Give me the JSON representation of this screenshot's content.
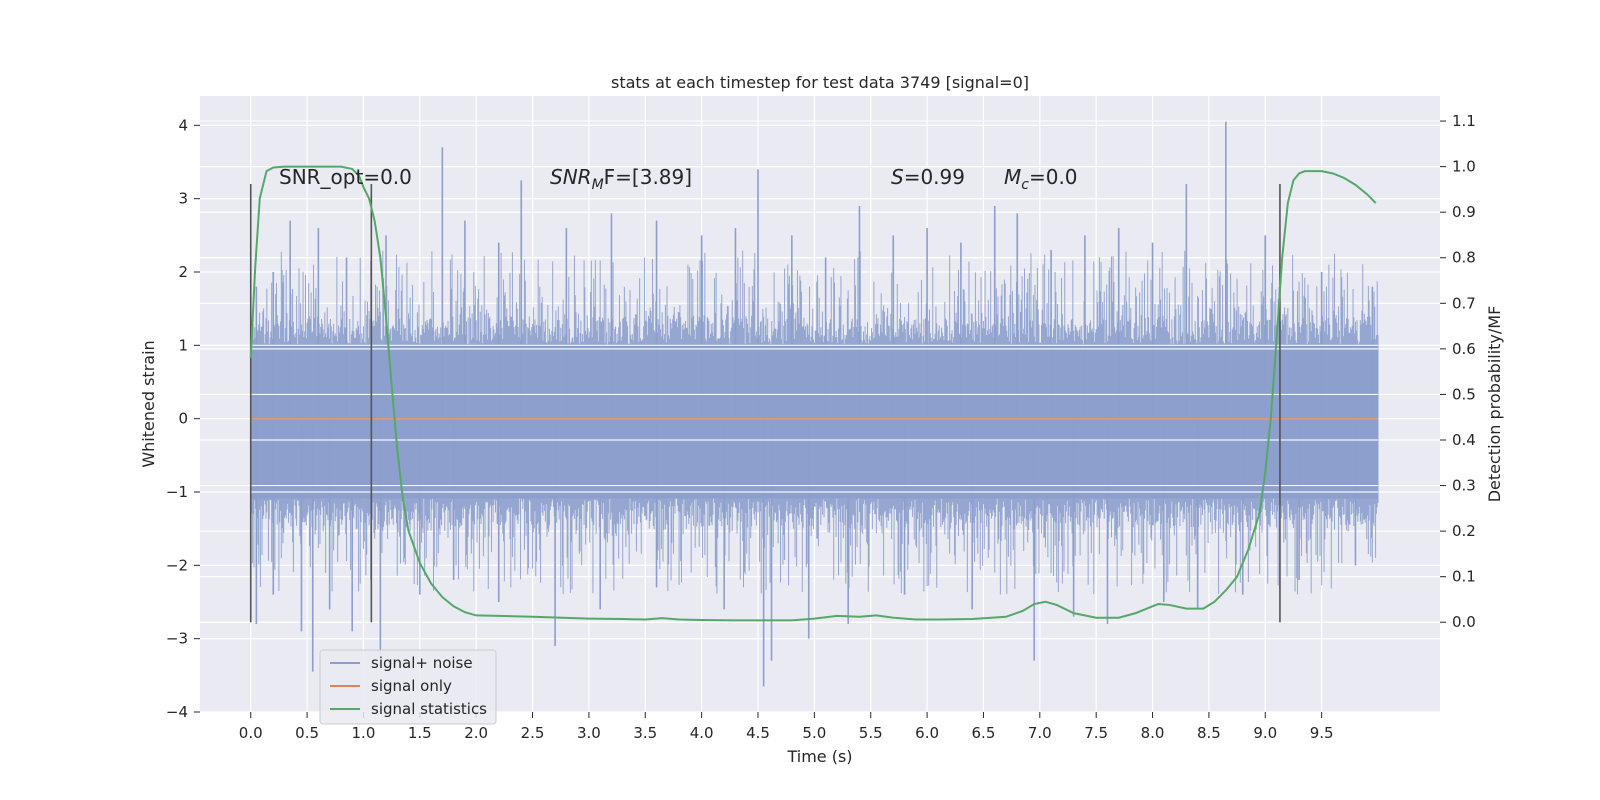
{
  "chart_data": {
    "type": "line",
    "title": "stats at each timestep for test data 3749 [signal=0]",
    "xlabel": "Time (s)",
    "ylabel_left": "Whitened strain",
    "ylabel_right": "Detection probability/MF",
    "xlim": [
      -0.45,
      10.55
    ],
    "ylim_left": [
      -4.0,
      4.4
    ],
    "ylim_right": [
      -0.197,
      1.155
    ],
    "x_ticks": [
      0.0,
      0.5,
      1.0,
      1.5,
      2.0,
      2.5,
      3.0,
      3.5,
      4.0,
      4.5,
      5.0,
      5.5,
      6.0,
      6.5,
      7.0,
      7.5,
      8.0,
      8.5,
      9.0,
      9.5
    ],
    "x_tick_labels": [
      "0.0",
      "0.5",
      "1.0",
      "1.5",
      "2.0",
      "2.5",
      "3.0",
      "3.5",
      "4.0",
      "4.5",
      "5.0",
      "5.5",
      "6.0",
      "6.5",
      "7.0",
      "7.5",
      "8.0",
      "8.5",
      "9.0",
      "9.5"
    ],
    "y_left_ticks": [
      -4,
      -3,
      -2,
      -1,
      0,
      1,
      2,
      3,
      4
    ],
    "y_left_tick_labels": [
      "−4",
      "−3",
      "−2",
      "−1",
      "0",
      "1",
      "2",
      "3",
      "4"
    ],
    "y_right_ticks": [
      0.0,
      0.1,
      0.2,
      0.3,
      0.4,
      0.5,
      0.6,
      0.7,
      0.8,
      0.9,
      1.0,
      1.1
    ],
    "y_right_tick_labels": [
      "0.0",
      "0.1",
      "0.2",
      "0.3",
      "0.4",
      "0.5",
      "0.6",
      "0.7",
      "0.8",
      "0.9",
      "1.0",
      "1.1"
    ],
    "grid": true,
    "legend_position": "lower-left",
    "annotations": {
      "snr_opt": "SNR_opt=0.0",
      "snr_mf_main": "SNR",
      "snr_mf_sub": "M",
      "snr_mf_rest": "F=[3.89]",
      "s_main": "S",
      "s_rest": "=0.99",
      "mc_main": "M",
      "mc_sub": "c",
      "mc_rest": "=0.0"
    },
    "window_markers_x": [
      0.0,
      1.07,
      9.13
    ],
    "window_marker_range_right": [
      0.0,
      1.0
    ],
    "series": [
      {
        "name": "signal+ noise",
        "color": "#8c9fcc",
        "axis": "left",
        "x_range": [
          0.0,
          10.0
        ],
        "envelope": {
          "core_upper": 1.35,
          "core_lower": -1.45,
          "peak_values_upper": [
            1.8,
            2.0,
            2.7,
            2.6,
            2.2,
            2.5,
            3.7,
            2.7,
            2.4,
            3.25,
            2.6,
            2.8,
            2.7,
            2.5,
            2.6,
            3.4,
            2.5,
            2.2,
            2.9,
            2.5,
            2.6,
            2.4,
            2.9,
            2.8,
            2.3,
            2.5,
            2.6,
            2.4,
            3.2,
            4.05,
            2.5,
            2.0,
            1.8
          ],
          "peak_x_upper": [
            0.05,
            0.2,
            0.35,
            0.6,
            0.85,
            1.2,
            1.7,
            1.9,
            2.2,
            2.4,
            2.8,
            3.2,
            3.6,
            4.0,
            4.3,
            4.5,
            4.8,
            5.1,
            5.4,
            5.7,
            6.0,
            6.3,
            6.6,
            6.8,
            7.1,
            7.4,
            7.7,
            8.0,
            8.3,
            8.65,
            9.0,
            9.5,
            9.95
          ],
          "peak_values_lower": [
            -2.8,
            -2.4,
            -2.9,
            -3.45,
            -2.6,
            -2.9,
            -3.2,
            -2.4,
            -2.2,
            -2.5,
            -3.1,
            -2.6,
            -2.3,
            -2.6,
            -3.65,
            -3.3,
            -3.0,
            -2.8,
            -2.4,
            -2.6,
            -3.3,
            -2.7,
            -2.8,
            -2.5,
            -2.6,
            -2.4,
            -2.2,
            -2.0
          ],
          "peak_x_lower": [
            0.05,
            0.2,
            0.45,
            0.55,
            0.7,
            0.9,
            1.15,
            1.5,
            1.8,
            2.2,
            2.7,
            3.1,
            3.6,
            4.2,
            4.55,
            4.62,
            4.95,
            5.3,
            5.8,
            6.4,
            6.95,
            7.3,
            7.6,
            8.1,
            8.4,
            8.8,
            9.3,
            9.8
          ]
        }
      },
      {
        "name": "signal only",
        "color": "#dd8452",
        "axis": "left",
        "x": [
          0.0,
          10.0
        ],
        "y": [
          0.0,
          0.0
        ]
      },
      {
        "name": "signal statistics",
        "color": "#55a868",
        "axis": "right",
        "x": [
          0.0,
          0.04,
          0.08,
          0.14,
          0.2,
          0.3,
          0.4,
          0.5,
          0.6,
          0.7,
          0.8,
          0.9,
          0.96,
          1.0,
          1.05,
          1.1,
          1.15,
          1.2,
          1.25,
          1.3,
          1.35,
          1.4,
          1.5,
          1.6,
          1.7,
          1.8,
          1.9,
          2.0,
          2.2,
          2.5,
          3.0,
          3.3,
          3.5,
          3.65,
          3.8,
          4.0,
          4.3,
          4.6,
          4.8,
          5.0,
          5.2,
          5.4,
          5.55,
          5.7,
          5.9,
          6.1,
          6.4,
          6.7,
          6.85,
          6.95,
          7.05,
          7.15,
          7.3,
          7.5,
          7.7,
          7.85,
          7.95,
          8.05,
          8.15,
          8.3,
          8.45,
          8.55,
          8.65,
          8.75,
          8.85,
          8.95,
          9.0,
          9.05,
          9.1,
          9.15,
          9.2,
          9.25,
          9.3,
          9.35,
          9.4,
          9.5,
          9.6,
          9.7,
          9.8,
          9.9,
          9.98
        ],
        "y": [
          0.58,
          0.78,
          0.93,
          0.99,
          0.998,
          1.0,
          1.0,
          1.0,
          1.0,
          1.0,
          1.0,
          0.995,
          0.98,
          0.955,
          0.93,
          0.88,
          0.8,
          0.67,
          0.52,
          0.38,
          0.27,
          0.2,
          0.13,
          0.085,
          0.055,
          0.035,
          0.022,
          0.015,
          0.014,
          0.012,
          0.008,
          0.007,
          0.006,
          0.009,
          0.006,
          0.005,
          0.004,
          0.004,
          0.004,
          0.008,
          0.014,
          0.012,
          0.015,
          0.01,
          0.006,
          0.006,
          0.007,
          0.012,
          0.025,
          0.04,
          0.045,
          0.038,
          0.02,
          0.01,
          0.01,
          0.02,
          0.03,
          0.04,
          0.038,
          0.03,
          0.03,
          0.045,
          0.07,
          0.1,
          0.16,
          0.24,
          0.33,
          0.45,
          0.62,
          0.8,
          0.92,
          0.97,
          0.985,
          0.99,
          0.99,
          0.99,
          0.985,
          0.975,
          0.96,
          0.94,
          0.92
        ]
      }
    ]
  }
}
